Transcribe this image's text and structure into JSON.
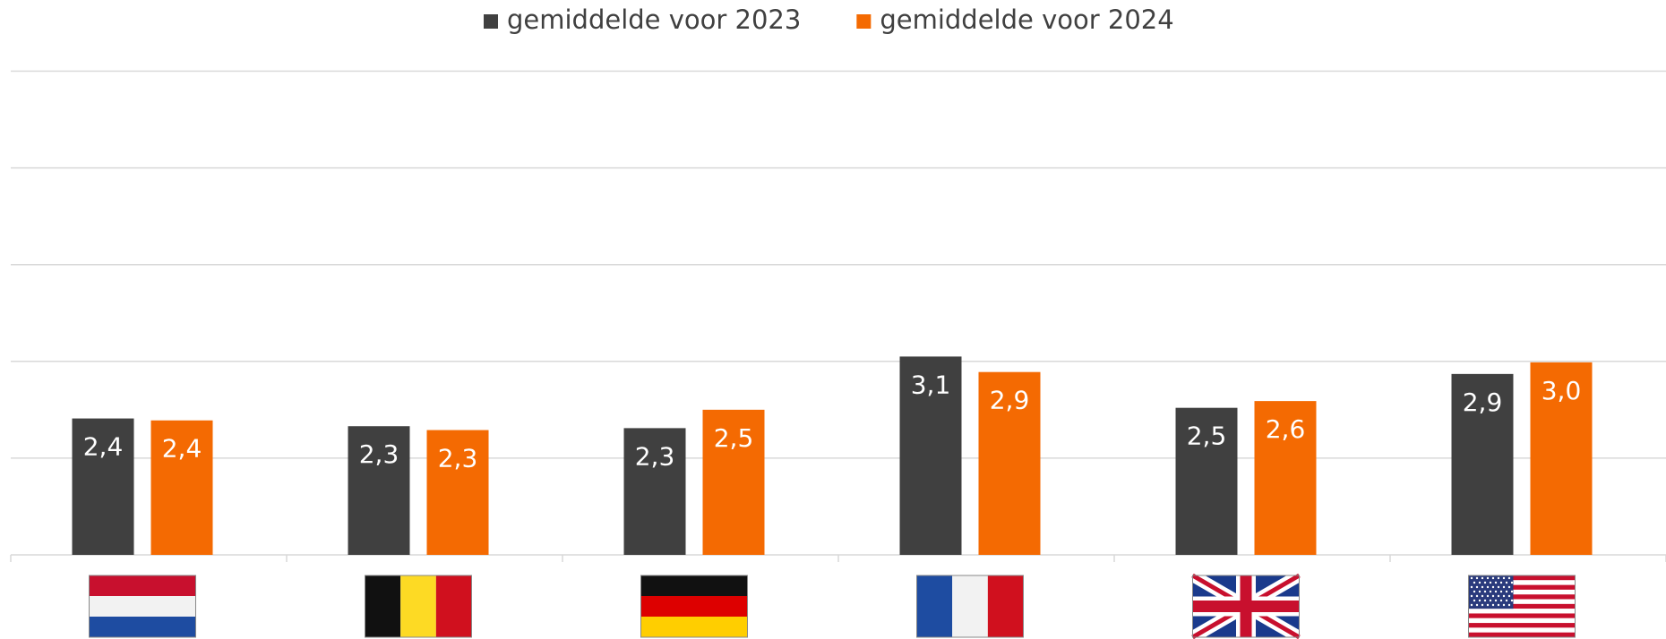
{
  "chart_data": {
    "type": "bar",
    "categories": [
      null,
      null,
      null,
      null,
      null,
      null
    ],
    "series": [
      {
        "name": "gemiddelde voor 2023",
        "color": "#404040",
        "values": [
          2.41,
          2.33,
          2.31,
          3.05,
          2.52,
          2.87
        ],
        "value_labels": [
          "2,4",
          "2,3",
          "2,3",
          "3,1",
          "2,5",
          "2,9"
        ]
      },
      {
        "name": "gemiddelde voor 2024",
        "color": "#f46a02",
        "values": [
          2.39,
          2.29,
          2.5,
          2.89,
          2.59,
          2.99
        ],
        "value_labels": [
          "2,4",
          "2,3",
          "2,5",
          "2,9",
          "2,6",
          "3,0"
        ]
      }
    ],
    "ylim": [
      1,
      6
    ],
    "yticks": [
      1,
      2,
      3,
      4,
      5,
      6
    ],
    "grid": true,
    "legend": "top"
  }
}
